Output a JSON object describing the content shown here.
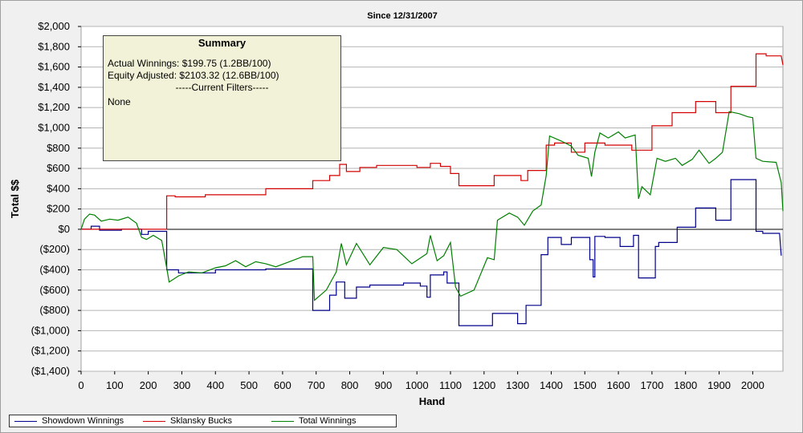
{
  "chart_data": {
    "type": "line",
    "title": "Since 12/31/2007",
    "xlabel": "Hand",
    "ylabel": "Total $$",
    "xlim": [
      0,
      2090
    ],
    "ylim": [
      -1400,
      2000
    ],
    "x_ticks": [
      "0",
      "100",
      "200",
      "300",
      "400",
      "500",
      "600",
      "700",
      "800",
      "900",
      "1000",
      "1100",
      "1200",
      "1300",
      "1400",
      "1500",
      "1600",
      "1700",
      "1800",
      "1900",
      "2000"
    ],
    "y_ticks": [
      "$2,000",
      "$1,800",
      "$1,600",
      "$1,400",
      "$1,200",
      "$1,000",
      "$800",
      "$600",
      "$400",
      "$200",
      "$0",
      "($200)",
      "($400)",
      "($600)",
      "($800)",
      "($1,000)",
      "($1,200)",
      "($1,400)"
    ],
    "grid": true,
    "legend_position": "bottom-left",
    "series": [
      {
        "name": "Showdown Winnings",
        "color": "#00008b",
        "points": [
          [
            0,
            0
          ],
          [
            30,
            0
          ],
          [
            30,
            30
          ],
          [
            55,
            30
          ],
          [
            55,
            -10
          ],
          [
            120,
            -10
          ],
          [
            120,
            0
          ],
          [
            180,
            0
          ],
          [
            180,
            -50
          ],
          [
            200,
            -50
          ],
          [
            200,
            -20
          ],
          [
            255,
            -20
          ],
          [
            255,
            -400
          ],
          [
            290,
            -400
          ],
          [
            290,
            -430
          ],
          [
            400,
            -430
          ],
          [
            400,
            -400
          ],
          [
            550,
            -400
          ],
          [
            550,
            -390
          ],
          [
            690,
            -390
          ],
          [
            690,
            -800
          ],
          [
            740,
            -800
          ],
          [
            740,
            -650
          ],
          [
            760,
            -650
          ],
          [
            760,
            -520
          ],
          [
            785,
            -520
          ],
          [
            785,
            -680
          ],
          [
            820,
            -680
          ],
          [
            820,
            -570
          ],
          [
            860,
            -570
          ],
          [
            860,
            -550
          ],
          [
            960,
            -550
          ],
          [
            960,
            -530
          ],
          [
            1010,
            -530
          ],
          [
            1010,
            -560
          ],
          [
            1030,
            -560
          ],
          [
            1030,
            -670
          ],
          [
            1040,
            -670
          ],
          [
            1040,
            -450
          ],
          [
            1080,
            -450
          ],
          [
            1080,
            -420
          ],
          [
            1090,
            -420
          ],
          [
            1090,
            -530
          ],
          [
            1125,
            -530
          ],
          [
            1125,
            -950
          ],
          [
            1225,
            -950
          ],
          [
            1225,
            -830
          ],
          [
            1300,
            -830
          ],
          [
            1300,
            -930
          ],
          [
            1325,
            -930
          ],
          [
            1325,
            -750
          ],
          [
            1370,
            -750
          ],
          [
            1370,
            -250
          ],
          [
            1390,
            -250
          ],
          [
            1390,
            -80
          ],
          [
            1430,
            -80
          ],
          [
            1430,
            -150
          ],
          [
            1460,
            -150
          ],
          [
            1460,
            -80
          ],
          [
            1515,
            -80
          ],
          [
            1515,
            -300
          ],
          [
            1525,
            -300
          ],
          [
            1525,
            -470
          ],
          [
            1530,
            -470
          ],
          [
            1530,
            -70
          ],
          [
            1560,
            -70
          ],
          [
            1560,
            -80
          ],
          [
            1605,
            -80
          ],
          [
            1605,
            -170
          ],
          [
            1645,
            -170
          ],
          [
            1645,
            -60
          ],
          [
            1660,
            -60
          ],
          [
            1660,
            -480
          ],
          [
            1710,
            -480
          ],
          [
            1710,
            -170
          ],
          [
            1720,
            -170
          ],
          [
            1720,
            -130
          ],
          [
            1775,
            -130
          ],
          [
            1775,
            20
          ],
          [
            1830,
            20
          ],
          [
            1830,
            210
          ],
          [
            1890,
            210
          ],
          [
            1890,
            90
          ],
          [
            1935,
            90
          ],
          [
            1935,
            490
          ],
          [
            2010,
            490
          ],
          [
            2010,
            -20
          ],
          [
            2030,
            -20
          ],
          [
            2030,
            -40
          ],
          [
            2080,
            -40
          ],
          [
            2085,
            -260
          ]
        ]
      },
      {
        "name": "Sklansky Bucks",
        "color": "#d40000",
        "points": [
          [
            0,
            0
          ],
          [
            255,
            0
          ],
          [
            255,
            330
          ],
          [
            280,
            330
          ],
          [
            280,
            320
          ],
          [
            370,
            320
          ],
          [
            370,
            340
          ],
          [
            550,
            340
          ],
          [
            550,
            400
          ],
          [
            690,
            400
          ],
          [
            690,
            480
          ],
          [
            740,
            480
          ],
          [
            740,
            530
          ],
          [
            770,
            530
          ],
          [
            770,
            640
          ],
          [
            790,
            640
          ],
          [
            790,
            570
          ],
          [
            830,
            570
          ],
          [
            830,
            610
          ],
          [
            880,
            610
          ],
          [
            880,
            630
          ],
          [
            1000,
            630
          ],
          [
            1000,
            610
          ],
          [
            1040,
            610
          ],
          [
            1040,
            650
          ],
          [
            1070,
            650
          ],
          [
            1070,
            620
          ],
          [
            1100,
            620
          ],
          [
            1100,
            550
          ],
          [
            1125,
            550
          ],
          [
            1125,
            430
          ],
          [
            1230,
            430
          ],
          [
            1230,
            530
          ],
          [
            1310,
            530
          ],
          [
            1310,
            480
          ],
          [
            1330,
            480
          ],
          [
            1330,
            580
          ],
          [
            1385,
            580
          ],
          [
            1385,
            830
          ],
          [
            1410,
            830
          ],
          [
            1410,
            850
          ],
          [
            1460,
            850
          ],
          [
            1460,
            760
          ],
          [
            1500,
            760
          ],
          [
            1500,
            850
          ],
          [
            1560,
            850
          ],
          [
            1560,
            830
          ],
          [
            1640,
            830
          ],
          [
            1640,
            780
          ],
          [
            1700,
            780
          ],
          [
            1700,
            1020
          ],
          [
            1760,
            1020
          ],
          [
            1760,
            1150
          ],
          [
            1830,
            1150
          ],
          [
            1830,
            1260
          ],
          [
            1890,
            1260
          ],
          [
            1890,
            1150
          ],
          [
            1935,
            1150
          ],
          [
            1935,
            1410
          ],
          [
            2010,
            1410
          ],
          [
            2010,
            1730
          ],
          [
            2040,
            1730
          ],
          [
            2040,
            1710
          ],
          [
            2085,
            1710
          ],
          [
            2090,
            1620
          ]
        ]
      },
      {
        "name": "Total Winnings",
        "color": "#008000",
        "points": [
          [
            0,
            0
          ],
          [
            10,
            100
          ],
          [
            25,
            150
          ],
          [
            40,
            140
          ],
          [
            60,
            80
          ],
          [
            85,
            100
          ],
          [
            110,
            90
          ],
          [
            140,
            120
          ],
          [
            165,
            60
          ],
          [
            180,
            -80
          ],
          [
            195,
            -100
          ],
          [
            215,
            -60
          ],
          [
            240,
            -110
          ],
          [
            255,
            -380
          ],
          [
            262,
            -520
          ],
          [
            290,
            -460
          ],
          [
            320,
            -420
          ],
          [
            360,
            -430
          ],
          [
            400,
            -380
          ],
          [
            430,
            -360
          ],
          [
            460,
            -310
          ],
          [
            490,
            -370
          ],
          [
            520,
            -320
          ],
          [
            550,
            -340
          ],
          [
            580,
            -370
          ],
          [
            620,
            -320
          ],
          [
            660,
            -270
          ],
          [
            690,
            -270
          ],
          [
            695,
            -700
          ],
          [
            730,
            -600
          ],
          [
            760,
            -420
          ],
          [
            775,
            -140
          ],
          [
            790,
            -350
          ],
          [
            820,
            -140
          ],
          [
            860,
            -350
          ],
          [
            900,
            -180
          ],
          [
            940,
            -200
          ],
          [
            985,
            -340
          ],
          [
            1030,
            -240
          ],
          [
            1040,
            -60
          ],
          [
            1060,
            -310
          ],
          [
            1080,
            -260
          ],
          [
            1100,
            -130
          ],
          [
            1115,
            -570
          ],
          [
            1130,
            -660
          ],
          [
            1170,
            -600
          ],
          [
            1210,
            -280
          ],
          [
            1230,
            -300
          ],
          [
            1240,
            90
          ],
          [
            1275,
            160
          ],
          [
            1300,
            120
          ],
          [
            1320,
            40
          ],
          [
            1345,
            180
          ],
          [
            1370,
            240
          ],
          [
            1385,
            530
          ],
          [
            1395,
            920
          ],
          [
            1430,
            870
          ],
          [
            1460,
            820
          ],
          [
            1480,
            730
          ],
          [
            1510,
            700
          ],
          [
            1520,
            520
          ],
          [
            1530,
            760
          ],
          [
            1545,
            950
          ],
          [
            1570,
            900
          ],
          [
            1600,
            960
          ],
          [
            1620,
            900
          ],
          [
            1650,
            930
          ],
          [
            1660,
            300
          ],
          [
            1670,
            420
          ],
          [
            1695,
            340
          ],
          [
            1715,
            700
          ],
          [
            1740,
            670
          ],
          [
            1770,
            700
          ],
          [
            1790,
            630
          ],
          [
            1820,
            690
          ],
          [
            1840,
            780
          ],
          [
            1870,
            650
          ],
          [
            1890,
            700
          ],
          [
            1910,
            760
          ],
          [
            1930,
            1160
          ],
          [
            1960,
            1140
          ],
          [
            1985,
            1110
          ],
          [
            2000,
            1100
          ],
          [
            2010,
            700
          ],
          [
            2030,
            670
          ],
          [
            2070,
            660
          ],
          [
            2085,
            460
          ],
          [
            2090,
            180
          ]
        ]
      }
    ]
  },
  "summary": {
    "title": "Summary",
    "actual_winnings": "Actual Winnings: $199.75 (1.2BB/100)",
    "equity_adjusted": "Equity Adjusted: $2103.32 (12.6BB/100)",
    "current_filters": "-----Current Filters-----",
    "filters_value": "None"
  }
}
